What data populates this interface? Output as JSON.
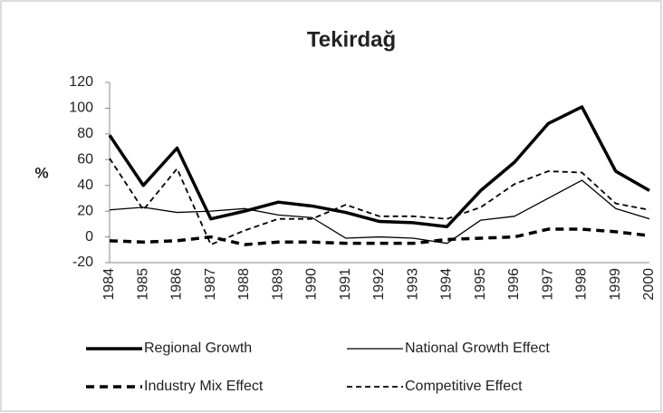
{
  "chart_data": {
    "type": "line",
    "title": "Tekirdağ",
    "y_label": "%",
    "categories": [
      "1984",
      "1985",
      "1986",
      "1987",
      "1988",
      "1989",
      "1990",
      "1991",
      "1992",
      "1993",
      "1994",
      "1995",
      "1996",
      "1997",
      "1998",
      "1999",
      "2000"
    ],
    "series": [
      {
        "name": "Regional Growth",
        "color": "#000000",
        "width": 3.5,
        "dash": "none",
        "values": [
          79,
          40,
          69,
          14,
          20,
          27,
          24,
          19,
          12,
          11,
          8,
          36,
          58,
          88,
          101,
          51,
          36
        ]
      },
      {
        "name": "National Growth Effect",
        "color": "#000000",
        "width": 1.3,
        "dash": "none",
        "values": [
          21,
          23,
          19,
          20,
          22,
          17,
          15,
          -1,
          0,
          -1,
          -5,
          13,
          16,
          30,
          44,
          22,
          14
        ]
      },
      {
        "name": "Industry Mix Effect",
        "color": "#000000",
        "width": 3.5,
        "dash": "9 6",
        "values": [
          -3,
          -4,
          -3,
          0,
          -6,
          -4,
          -4,
          -5,
          -5,
          -5,
          -2,
          -1,
          0,
          6,
          6,
          4,
          1
        ]
      },
      {
        "name": "Competitive Effect",
        "color": "#000000",
        "width": 1.8,
        "dash": "6 4",
        "values": [
          61,
          21,
          53,
          -6,
          5,
          14,
          14,
          25,
          16,
          16,
          14,
          23,
          41,
          51,
          50,
          26,
          21
        ]
      }
    ],
    "ylim": [
      -20,
      120
    ],
    "yticks": [
      -20,
      0,
      20,
      40,
      60,
      80,
      100,
      120
    ],
    "grid": false
  }
}
